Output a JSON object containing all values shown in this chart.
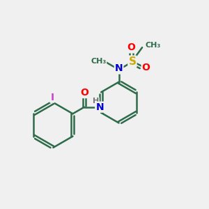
{
  "background_color": "#f0f0f0",
  "bond_color": "#2d6b4a",
  "bond_width": 1.8,
  "atom_colors": {
    "O": "#ff0000",
    "N": "#0000cc",
    "S": "#ccaa00",
    "I": "#cc44cc",
    "H": "#777777",
    "C": "#2d6b4a"
  },
  "font_size": 9
}
